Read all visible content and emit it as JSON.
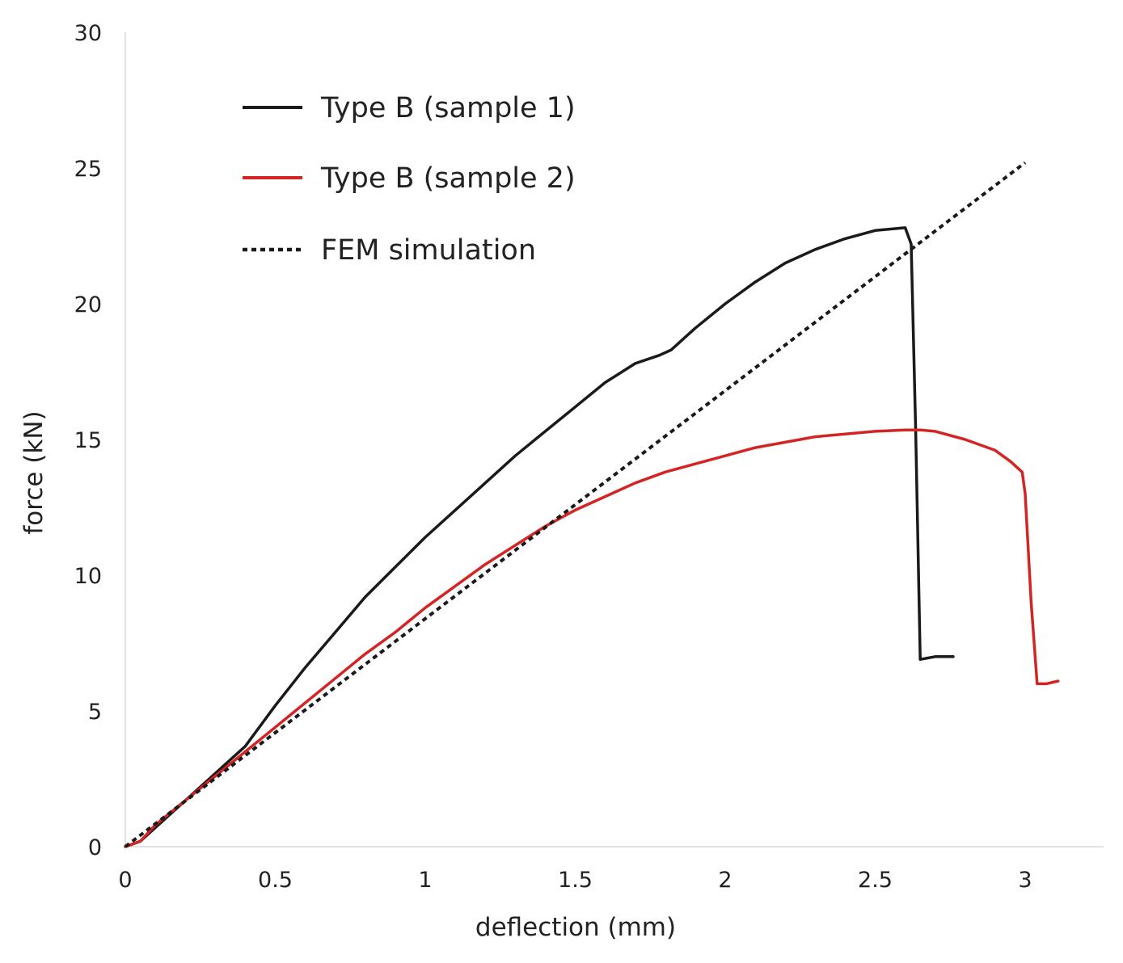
{
  "chart_data": {
    "type": "line",
    "title": "",
    "xlabel": "deflection (mm)",
    "ylabel": "force (kN)",
    "xlim": [
      0,
      3.25
    ],
    "ylim": [
      0,
      30
    ],
    "xticks": [
      0,
      0.5,
      1,
      1.5,
      2,
      2.5,
      3
    ],
    "xtick_labels": [
      "0",
      "0.5",
      "1",
      "1.5",
      "2",
      "2.5",
      "3"
    ],
    "yticks": [
      0,
      5,
      10,
      15,
      20,
      25,
      30
    ],
    "ytick_labels": [
      "0",
      "5",
      "10",
      "15",
      "20",
      "25",
      "30"
    ],
    "grid": false,
    "legend_position": "top-left",
    "series": [
      {
        "name": "Type B (sample 1)",
        "color": "#1a1a1a",
        "style": "solid",
        "x": [
          0,
          0.05,
          0.1,
          0.2,
          0.3,
          0.4,
          0.5,
          0.6,
          0.7,
          0.8,
          0.9,
          1.0,
          1.1,
          1.2,
          1.3,
          1.4,
          1.5,
          1.6,
          1.7,
          1.78,
          1.82,
          1.9,
          2.0,
          2.1,
          2.2,
          2.3,
          2.4,
          2.5,
          2.6,
          2.62,
          2.635,
          2.65,
          2.7,
          2.76
        ],
        "y": [
          0,
          0.2,
          0.7,
          1.7,
          2.7,
          3.7,
          5.2,
          6.6,
          7.9,
          9.2,
          10.3,
          11.4,
          12.4,
          13.4,
          14.4,
          15.3,
          16.2,
          17.1,
          17.8,
          18.1,
          18.3,
          19.1,
          20.0,
          20.8,
          21.5,
          22.0,
          22.4,
          22.7,
          22.8,
          22.2,
          15.3,
          6.9,
          7.0,
          7.0
        ]
      },
      {
        "name": "Type B (sample 2)",
        "color": "#d42525",
        "style": "solid",
        "x": [
          0,
          0.05,
          0.1,
          0.2,
          0.3,
          0.4,
          0.5,
          0.6,
          0.7,
          0.8,
          0.9,
          1.0,
          1.1,
          1.2,
          1.3,
          1.4,
          1.5,
          1.6,
          1.7,
          1.8,
          1.9,
          2.0,
          2.1,
          2.2,
          2.3,
          2.4,
          2.5,
          2.6,
          2.65,
          2.7,
          2.8,
          2.9,
          2.95,
          2.99,
          3.0,
          3.02,
          3.04,
          3.07,
          3.11
        ],
        "y": [
          0,
          0.2,
          0.8,
          1.7,
          2.6,
          3.5,
          4.4,
          5.3,
          6.2,
          7.1,
          7.9,
          8.8,
          9.6,
          10.4,
          11.1,
          11.8,
          12.4,
          12.9,
          13.4,
          13.8,
          14.1,
          14.4,
          14.7,
          14.9,
          15.1,
          15.2,
          15.3,
          15.35,
          15.35,
          15.3,
          15.0,
          14.6,
          14.2,
          13.8,
          13.0,
          9.0,
          6.0,
          6.0,
          6.1
        ]
      },
      {
        "name": "FEM simulation",
        "color": "#1a1a1a",
        "style": "dashed",
        "x": [
          0,
          3.0
        ],
        "y": [
          0,
          25.2
        ]
      }
    ]
  }
}
